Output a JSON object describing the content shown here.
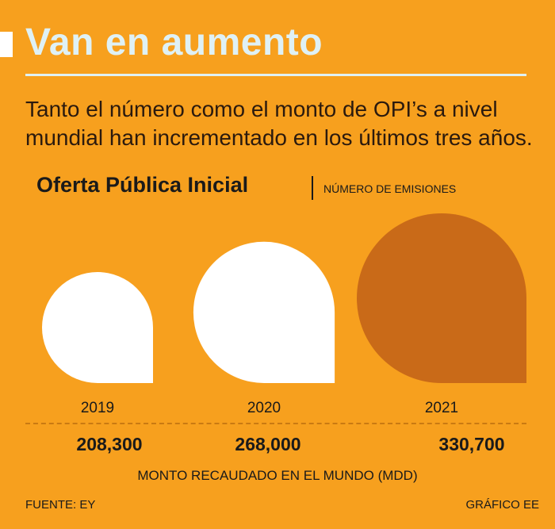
{
  "header": {
    "title": "Van en aumento",
    "subtitle": "Tanto el número como el monto de OPI’s a nivel mundial han incrementado en los últimos tres años."
  },
  "chart_heading": {
    "title": "Oferta Pública Inicial",
    "unit_label": "NÚMERO DE EMISIONES"
  },
  "chart_data": {
    "type": "bar",
    "title": "Oferta Pública Inicial",
    "categories": [
      "2019",
      "2020",
      "2021"
    ],
    "series": [
      {
        "name": "MONTO RECAUDADO EN EL MUNDO (MDD)",
        "values": [
          208300,
          268000,
          330700
        ]
      }
    ],
    "value_labels": [
      "208,300",
      "268,000",
      "330,700"
    ],
    "colors": [
      "#ffffff",
      "#ffffff",
      "#c96a18"
    ]
  },
  "footer": {
    "axis_note": "MONTO RECAUDADO EN EL MUNDO (MDD)",
    "source": "FUENTE: EY",
    "credit": "GRÁFICO EE"
  }
}
